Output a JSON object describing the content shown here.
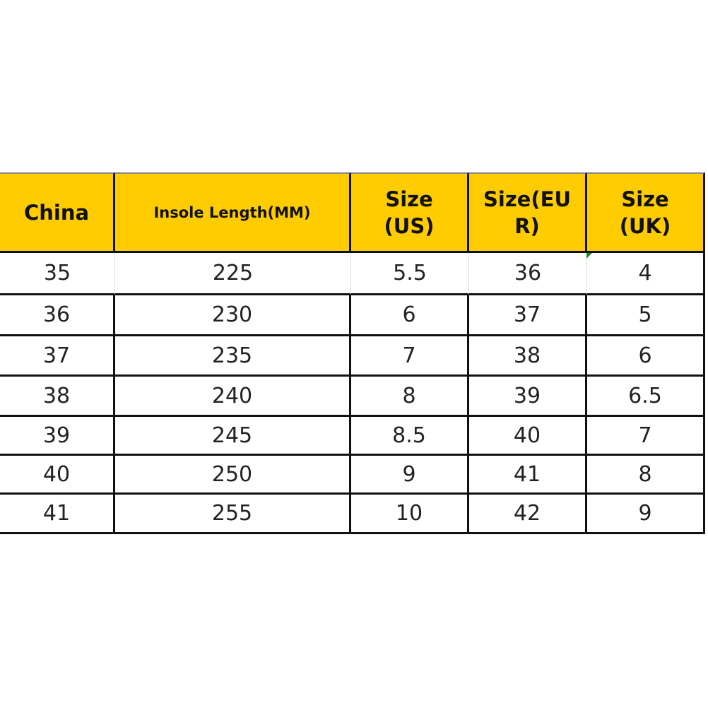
{
  "table": {
    "headers": [
      "China",
      "Insole Length(MM)",
      "Size (US)",
      "Size(EUR)",
      "Size (UK)"
    ],
    "header_lines": [
      [
        "China"
      ],
      [
        "Insole Length(MM)"
      ],
      [
        "Size",
        "(US)"
      ],
      [
        "Size(EU",
        "R)"
      ],
      [
        "Size",
        "(UK)"
      ]
    ],
    "rows": [
      [
        "35",
        "225",
        "5.5",
        "36",
        "4"
      ],
      [
        "36",
        "230",
        "6",
        "37",
        "5"
      ],
      [
        "37",
        "235",
        "7",
        "38",
        "6"
      ],
      [
        "38",
        "240",
        "8",
        "39",
        "6.5"
      ],
      [
        "39",
        "245",
        "8.5",
        "40",
        "7"
      ],
      [
        "40",
        "250",
        "9",
        "41",
        "8"
      ],
      [
        "41",
        "255",
        "10",
        "42",
        "9"
      ]
    ],
    "header_color": "#FFCC00"
  }
}
